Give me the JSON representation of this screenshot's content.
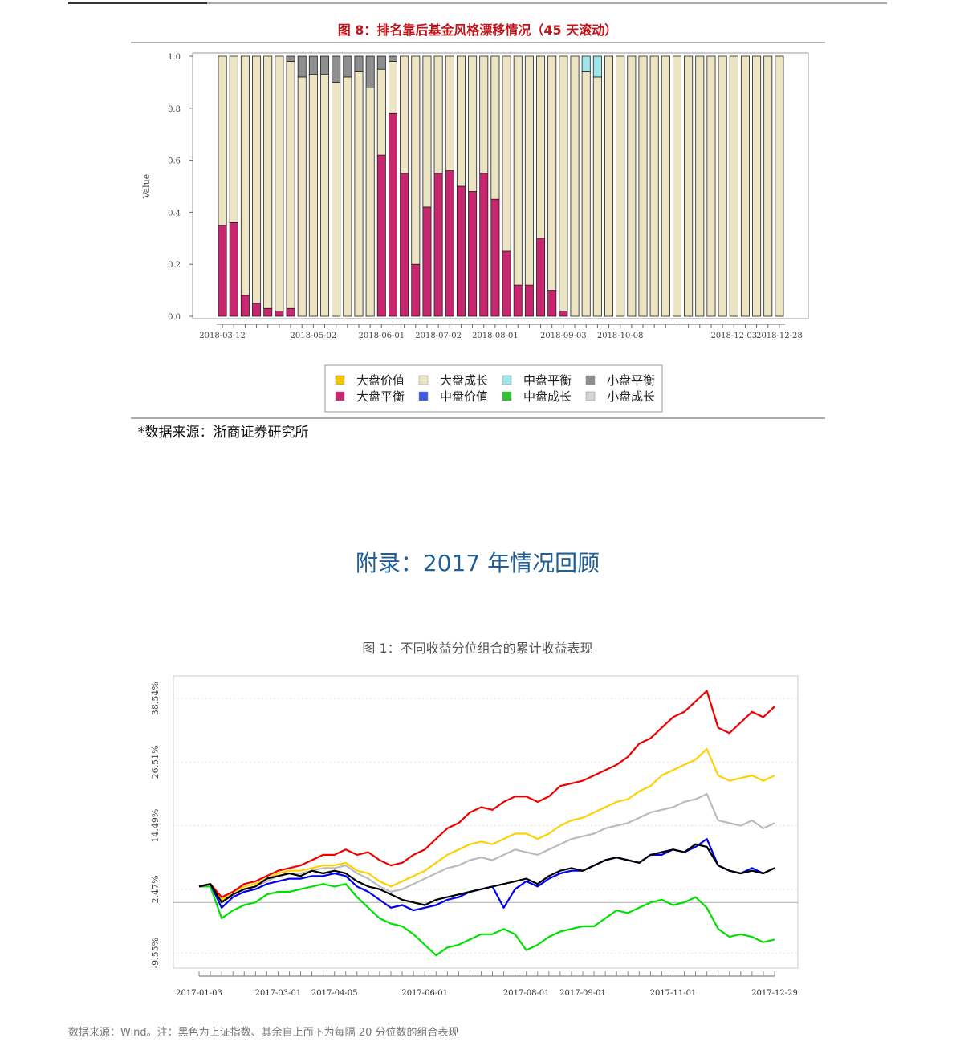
{
  "chart_data": [
    {
      "type": "stacked-bar",
      "title": "图 8：排名靠后基金风格漂移情况（45 天滚动）",
      "ylabel": "Value",
      "categories": [
        "2018-03-12",
        null,
        null,
        null,
        null,
        null,
        null,
        null,
        "2018-05-02",
        null,
        null,
        null,
        null,
        null,
        "2018-06-01",
        null,
        null,
        null,
        null,
        "2018-07-02",
        null,
        null,
        null,
        null,
        "2018-08-01",
        null,
        null,
        null,
        null,
        null,
        "2018-09-03",
        null,
        null,
        null,
        null,
        "2018-10-08",
        null,
        null,
        null,
        null,
        null,
        null,
        null,
        null,
        null,
        "2018-12-03",
        null,
        null,
        null,
        "2018-12-28"
      ],
      "ylim": [
        0,
        1
      ],
      "yticks": [
        {
          "value": 0,
          "label": "0.0"
        },
        0.2,
        0.4,
        0.6,
        0.8,
        {
          "value": 1,
          "label": "1.0"
        }
      ],
      "series": [
        {
          "name": "大盘价值",
          "color": "#f5c400",
          "values": [
            0,
            0,
            0,
            0,
            0,
            0,
            0,
            0,
            0,
            0,
            0,
            0,
            0,
            0,
            0,
            0,
            0,
            0,
            0,
            0,
            0,
            0,
            0,
            0,
            0,
            0,
            0,
            0,
            0,
            0,
            0,
            0,
            0,
            0,
            0,
            0,
            0,
            0,
            0,
            0,
            0,
            0,
            0,
            0,
            0,
            0,
            0,
            0,
            0,
            0
          ]
        },
        {
          "name": "大盘成长",
          "color": "#ece4c2",
          "values": [
            0.65,
            0.64,
            0.92,
            0.95,
            0.97,
            0.98,
            0.95,
            0.92,
            0.93,
            0.93,
            0.9,
            0.92,
            0.94,
            0.88,
            0.33,
            0.2,
            0.45,
            0.8,
            0.58,
            0.45,
            0.44,
            0.5,
            0.52,
            0.45,
            0.55,
            0.75,
            0.88,
            0.88,
            0.7,
            0.9,
            0.98,
            1,
            0.94,
            0.92,
            1,
            1,
            1,
            1,
            1,
            1,
            1,
            1,
            1,
            1,
            1,
            1,
            1,
            1,
            1,
            1
          ]
        },
        {
          "name": "中盘平衡",
          "color": "#9ee6ea",
          "values": [
            0,
            0,
            0,
            0,
            0,
            0,
            0,
            0,
            0,
            0,
            0,
            0,
            0,
            0,
            0,
            0,
            0,
            0,
            0,
            0,
            0,
            0,
            0,
            0,
            0,
            0,
            0,
            0,
            0,
            0,
            0,
            0,
            0.06,
            0.08,
            0,
            0,
            0,
            0,
            0,
            0,
            0,
            0,
            0,
            0,
            0,
            0,
            0,
            0,
            0,
            0
          ]
        },
        {
          "name": "小盘平衡",
          "color": "#8e8e8e",
          "values": [
            0,
            0,
            0,
            0,
            0,
            0,
            0.02,
            0.08,
            0.07,
            0.07,
            0.1,
            0.08,
            0.06,
            0.12,
            0.05,
            0.02,
            0,
            0,
            0,
            0,
            0,
            0,
            0,
            0,
            0,
            0,
            0,
            0,
            0,
            0,
            0,
            0,
            0,
            0,
            0,
            0,
            0,
            0,
            0,
            0,
            0,
            0,
            0,
            0,
            0,
            0,
            0,
            0,
            0,
            0
          ]
        },
        {
          "name": "大盘平衡",
          "color": "#c8266e",
          "values": [
            0.35,
            0.36,
            0.08,
            0.05,
            0.03,
            0.02,
            0.03,
            0,
            0,
            0,
            0,
            0,
            0,
            0,
            0.62,
            0.78,
            0.55,
            0.2,
            0.42,
            0.55,
            0.56,
            0.5,
            0.48,
            0.55,
            0.45,
            0.25,
            0.12,
            0.12,
            0.3,
            0.1,
            0.02,
            0,
            0,
            0,
            0,
            0,
            0,
            0,
            0,
            0,
            0,
            0,
            0,
            0,
            0,
            0,
            0,
            0,
            0,
            0
          ]
        },
        {
          "name": "中盘价值",
          "color": "#3d5de0",
          "values": [
            0,
            0,
            0,
            0,
            0,
            0,
            0,
            0,
            0,
            0,
            0,
            0,
            0,
            0,
            0,
            0,
            0,
            0,
            0,
            0,
            0,
            0,
            0,
            0,
            0,
            0,
            0,
            0,
            0,
            0,
            0,
            0,
            0,
            0,
            0,
            0,
            0,
            0,
            0,
            0,
            0,
            0,
            0,
            0,
            0,
            0,
            0,
            0,
            0,
            0
          ]
        },
        {
          "name": "中盘成长",
          "color": "#2ec42e",
          "values": [
            0,
            0,
            0,
            0,
            0,
            0,
            0,
            0,
            0,
            0,
            0,
            0,
            0,
            0,
            0,
            0,
            0,
            0,
            0,
            0,
            0,
            0,
            0,
            0,
            0,
            0,
            0,
            0,
            0,
            0,
            0,
            0,
            0,
            0,
            0,
            0,
            0,
            0,
            0,
            0,
            0,
            0,
            0,
            0,
            0,
            0,
            0,
            0,
            0,
            0
          ]
        },
        {
          "name": "小盘成长",
          "color": "#d4d4d4",
          "values": [
            0,
            0,
            0,
            0,
            0,
            0,
            0,
            0,
            0,
            0,
            0,
            0,
            0,
            0,
            0,
            0,
            0,
            0,
            0,
            0,
            0,
            0,
            0,
            0,
            0,
            0,
            0,
            0,
            0,
            0,
            0,
            0,
            0,
            0,
            0,
            0,
            0,
            0,
            0,
            0,
            0,
            0,
            0,
            0,
            0,
            0,
            0,
            0,
            0,
            0
          ]
        }
      ],
      "source": "*数据来源：浙商证券研究所"
    },
    {
      "type": "line",
      "title": "图 1：不同收益分位组合的累计收益表现",
      "categories": [
        "2017-01-03",
        null,
        null,
        null,
        null,
        null,
        null,
        "2017-03-01",
        null,
        null,
        null,
        null,
        "2017-04-05",
        null,
        null,
        null,
        null,
        null,
        null,
        null,
        "2017-06-01",
        null,
        null,
        null,
        null,
        null,
        null,
        null,
        null,
        "2017-08-01",
        null,
        null,
        null,
        null,
        "2017-09-01",
        null,
        null,
        null,
        null,
        null,
        null,
        null,
        "2017-11-01",
        null,
        null,
        null,
        null,
        null,
        null,
        null,
        null,
        "2017-12-29"
      ],
      "ylim": [
        -12.4,
        42.8
      ],
      "yticks": [
        {
          "value": -9.55,
          "label": "-9.55%"
        },
        {
          "value": 2.47,
          "label": "2.47%"
        },
        {
          "value": 14.49,
          "label": "14.49%"
        },
        {
          "value": 26.51,
          "label": "26.51%"
        },
        {
          "value": 38.54,
          "label": "38.54%"
        }
      ],
      "series": [
        {
          "color": "#00e000",
          "values": [
            3,
            3,
            -3,
            -1.5,
            -0.5,
            0,
            1.5,
            2,
            2,
            2.5,
            3,
            3.5,
            3,
            3.5,
            1,
            -1,
            -3,
            -4,
            -4.5,
            -6,
            -8,
            -10,
            -8.5,
            -8,
            -7,
            -6,
            -6,
            -5,
            -6,
            -9,
            -8,
            -6.5,
            -5.5,
            -5,
            -4.5,
            -4.5,
            -3,
            -1.5,
            -2,
            -1,
            0,
            0.5,
            -0.5,
            0,
            1,
            -1,
            -5,
            -6.5,
            -6,
            -6.5,
            -7.5,
            -7
          ]
        },
        {
          "color": "#0000ee",
          "values": [
            3,
            3.5,
            -1,
            1,
            2,
            2.5,
            3.5,
            4,
            4.5,
            4.5,
            5,
            5,
            5.5,
            5,
            3,
            2,
            0.5,
            -1,
            -0.5,
            -1.5,
            -1,
            -0.5,
            0.5,
            1,
            2,
            2.5,
            3,
            -1,
            2.5,
            4,
            3,
            4.5,
            5.5,
            6,
            6,
            7,
            8,
            8.5,
            8,
            7.5,
            9,
            9,
            10,
            9.5,
            10.5,
            12,
            7,
            6,
            5.5,
            6.5,
            5.5,
            6.5
          ]
        },
        {
          "color": "#bbbbbb",
          "values": [
            3,
            3.5,
            0.5,
            1.5,
            2.5,
            3,
            4,
            5,
            5.5,
            5.5,
            6,
            6.5,
            6.5,
            7,
            5.5,
            4.5,
            3,
            2,
            2.5,
            3.5,
            4.5,
            5.5,
            6.5,
            7,
            8,
            8.5,
            8,
            9,
            10,
            9.5,
            9,
            10,
            11,
            12,
            12.5,
            13,
            14,
            14.5,
            15,
            16,
            17,
            17.5,
            18,
            19,
            19.5,
            20.5,
            15.5,
            15,
            14.5,
            15.5,
            14,
            15
          ]
        },
        {
          "color": "#ffd000",
          "values": [
            3,
            3.5,
            0.5,
            2,
            3,
            3.5,
            4.5,
            5.5,
            6,
            6,
            6.5,
            7,
            7,
            7.5,
            6,
            5.5,
            4,
            3,
            4,
            5,
            6,
            7.5,
            9,
            10,
            11,
            11.5,
            11,
            12,
            13,
            13,
            12,
            13,
            14.5,
            15.5,
            16,
            17,
            18,
            19,
            19.5,
            21,
            22,
            24,
            25,
            26,
            27,
            29,
            24,
            23,
            23.5,
            24,
            23,
            24
          ]
        },
        {
          "color": "#ee0000",
          "values": [
            3,
            3.5,
            1,
            2,
            3.5,
            4,
            5,
            6,
            6.5,
            7,
            8,
            9,
            9,
            10,
            9,
            9.5,
            8,
            7,
            7.5,
            9,
            10,
            12,
            14,
            15,
            17,
            18,
            17.5,
            19,
            20,
            20,
            19,
            20,
            22,
            22.5,
            23,
            24,
            25,
            26,
            27.5,
            30,
            31,
            33,
            35,
            36,
            38,
            40,
            33,
            32,
            34,
            36,
            35,
            37
          ]
        },
        {
          "color": "#000000",
          "values": [
            3,
            3.5,
            0,
            1.5,
            2.5,
            3,
            4.5,
            5,
            5.5,
            5,
            6,
            5.5,
            6,
            5.5,
            4,
            3,
            2.5,
            1.5,
            0.5,
            0,
            -0.5,
            0.5,
            1,
            1.5,
            2,
            2.5,
            3,
            3.5,
            4,
            4.5,
            3.5,
            5,
            6,
            6.5,
            6,
            7,
            8,
            8.5,
            8,
            7.5,
            9,
            9.5,
            10,
            9.5,
            11,
            10.5,
            7,
            6,
            5.5,
            6,
            5.5,
            6.5
          ]
        }
      ],
      "source": "数据来源：Wind。注：黑色为上证指数、其余自上而下为每隔 20 分位数的组合表现"
    }
  ],
  "section_title": "附录：2017 年情况回顾"
}
